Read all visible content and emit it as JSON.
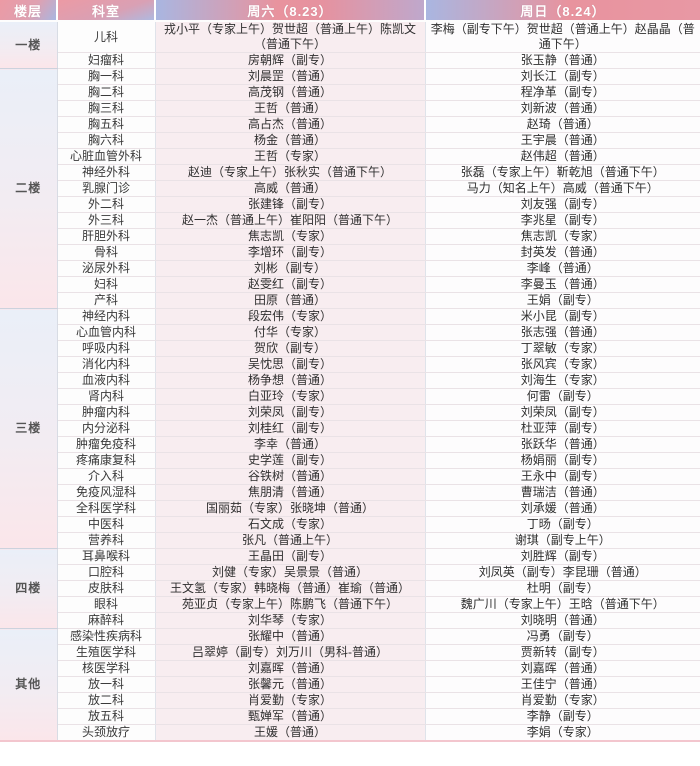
{
  "colors": {
    "header_pink": "#e8939e",
    "header_blue": "#a9b6e1",
    "floor_cell_top_blue": "#eaeff8",
    "floor_cell_bottom_pink": "#fbe6ea",
    "saturday_column_bg": "#f8edf0",
    "header_text": "#ffffff",
    "body_text": "#333333"
  },
  "table": {
    "headers": {
      "floor": "楼层",
      "dept": "科室",
      "sat": "周六（8.23）",
      "sun": "周日（8.24）"
    },
    "floors": [
      {
        "label": "一楼",
        "rows": [
          {
            "dept": "儿科",
            "sat": "戎小平（专家上午）贺世超（普通上午）陈凯文（普通下午）",
            "sun": "李梅（副专下午）贺世超（普通上午）赵晶晶（普通下午）"
          },
          {
            "dept": "妇瘤科",
            "sat": "房朝辉（副专）",
            "sun": "张玉静（普通）"
          }
        ]
      },
      {
        "label": "二楼",
        "rows": [
          {
            "dept": "胸一科",
            "sat": "刘晨罡（普通）",
            "sun": "刘长江（副专）"
          },
          {
            "dept": "胸二科",
            "sat": "高茂钢（普通）",
            "sun": "程净革（副专）"
          },
          {
            "dept": "胸三科",
            "sat": "王哲（普通）",
            "sun": "刘新波（普通）"
          },
          {
            "dept": "胸五科",
            "sat": "高占杰（普通）",
            "sun": "赵琦（普通）"
          },
          {
            "dept": "胸六科",
            "sat": "杨金（普通）",
            "sun": "王宇晨（普通）"
          },
          {
            "dept": "心脏血管外科",
            "sat": "王哲（专家）",
            "sun": "赵伟超（普通）"
          },
          {
            "dept": "神经外科",
            "sat": "赵迪（专家上午）张秋实（普通下午）",
            "sun": "张磊（专家上午）靳乾旭（普通下午）"
          },
          {
            "dept": "乳腺门诊",
            "sat": "高威（普通）",
            "sun": "马力（知名上午）高威（普通下午）"
          },
          {
            "dept": "外二科",
            "sat": "张建锋（副专）",
            "sun": "刘友强（副专）"
          },
          {
            "dept": "外三科",
            "sat": "赵一杰（普通上午）崔阳阳（普通下午）",
            "sun": "李兆星（副专）"
          },
          {
            "dept": "肝胆外科",
            "sat": "焦志凯（专家）",
            "sun": "焦志凯（专家）"
          },
          {
            "dept": "骨科",
            "sat": "李增环（副专）",
            "sun": "封英发（普通）"
          },
          {
            "dept": "泌尿外科",
            "sat": "刘彬（副专）",
            "sun": "李峰（普通）"
          },
          {
            "dept": "妇科",
            "sat": "赵雯红（副专）",
            "sun": "李曼玉（普通）"
          },
          {
            "dept": "产科",
            "sat": "田原（普通）",
            "sun": "王娟（副专）"
          }
        ]
      },
      {
        "label": "三楼",
        "rows": [
          {
            "dept": "神经内科",
            "sat": "段宏伟（专家）",
            "sun": "米小昆（副专）"
          },
          {
            "dept": "心血管内科",
            "sat": "付华（专家）",
            "sun": "张志强（普通）"
          },
          {
            "dept": "呼吸内科",
            "sat": "贺欣（副专）",
            "sun": "丁翠敏（专家）"
          },
          {
            "dept": "消化内科",
            "sat": "吴忱思（副专）",
            "sun": "张风宾（专家）"
          },
          {
            "dept": "血液内科",
            "sat": "杨争想（普通）",
            "sun": "刘海生（专家）"
          },
          {
            "dept": "肾内科",
            "sat": "白亚玲（专家）",
            "sun": "何雷（副专）"
          },
          {
            "dept": "肿瘤内科",
            "sat": "刘荣凤（副专）",
            "sun": "刘荣凤（副专）"
          },
          {
            "dept": "内分泌科",
            "sat": "刘桂红（副专）",
            "sun": "杜亚萍（副专）"
          },
          {
            "dept": "肿瘤免疫科",
            "sat": "李幸（普通）",
            "sun": "张跃华（普通）"
          },
          {
            "dept": "疼痛康复科",
            "sat": "史学莲（副专）",
            "sun": "杨娟丽（副专）"
          },
          {
            "dept": "介入科",
            "sat": "谷铁树（普通）",
            "sun": "王永中（副专）"
          },
          {
            "dept": "免疫风湿科",
            "sat": "焦朋清（普通）",
            "sun": "曹瑞洁（普通）"
          },
          {
            "dept": "全科医学科",
            "sat": "国丽茹（专家）张晓坤（普通）",
            "sun": "刘承媛（普通）"
          },
          {
            "dept": "中医科",
            "sat": "石文成（专家）",
            "sun": "丁旸（副专）"
          },
          {
            "dept": "营养科",
            "sat": "张凡（普通上午）",
            "sun": "谢琪（副专上午）"
          }
        ]
      },
      {
        "label": "四楼",
        "rows": [
          {
            "dept": "耳鼻喉科",
            "sat": "王晶田（副专）",
            "sun": "刘胜辉（副专）"
          },
          {
            "dept": "口腔科",
            "sat": "刘健（专家）吴景景（普通）",
            "sun": "刘凤英（副专）李昆珊（普通）"
          },
          {
            "dept": "皮肤科",
            "sat": "王文氢（专家）韩晓梅（普通）崔瑜（普通）",
            "sun": "杜明（副专）"
          },
          {
            "dept": "眼科",
            "sat": "苑亚贞（专家上午）陈鹏飞（普通下午）",
            "sun": "魏广川（专家上午）王晗（普通下午）"
          },
          {
            "dept": "麻醉科",
            "sat": "刘华琴（专家）",
            "sun": "刘晓明（普通）"
          }
        ]
      },
      {
        "label": "其他",
        "rows": [
          {
            "dept": "感染性疾病科",
            "sat": "张耀中（普通）",
            "sun": "冯勇（副专）"
          },
          {
            "dept": "生殖医学科",
            "sat": "吕翠婷（副专）刘万川（男科-普通）",
            "sun": "贾新转（副专）"
          },
          {
            "dept": "核医学科",
            "sat": "刘嘉晖（普通）",
            "sun": "刘嘉晖（普通）"
          },
          {
            "dept": "放一科",
            "sat": "张馨元（普通）",
            "sun": "王佳宁（普通）"
          },
          {
            "dept": "放二科",
            "sat": "肖爱勤（专家）",
            "sun": "肖爱勤（专家）"
          },
          {
            "dept": "放五科",
            "sat": "甄婵军（普通）",
            "sun": "李静（副专）"
          },
          {
            "dept": "头颈放疗",
            "sat": "王媛（普通）",
            "sun": "李娟（专家）"
          }
        ]
      }
    ]
  }
}
